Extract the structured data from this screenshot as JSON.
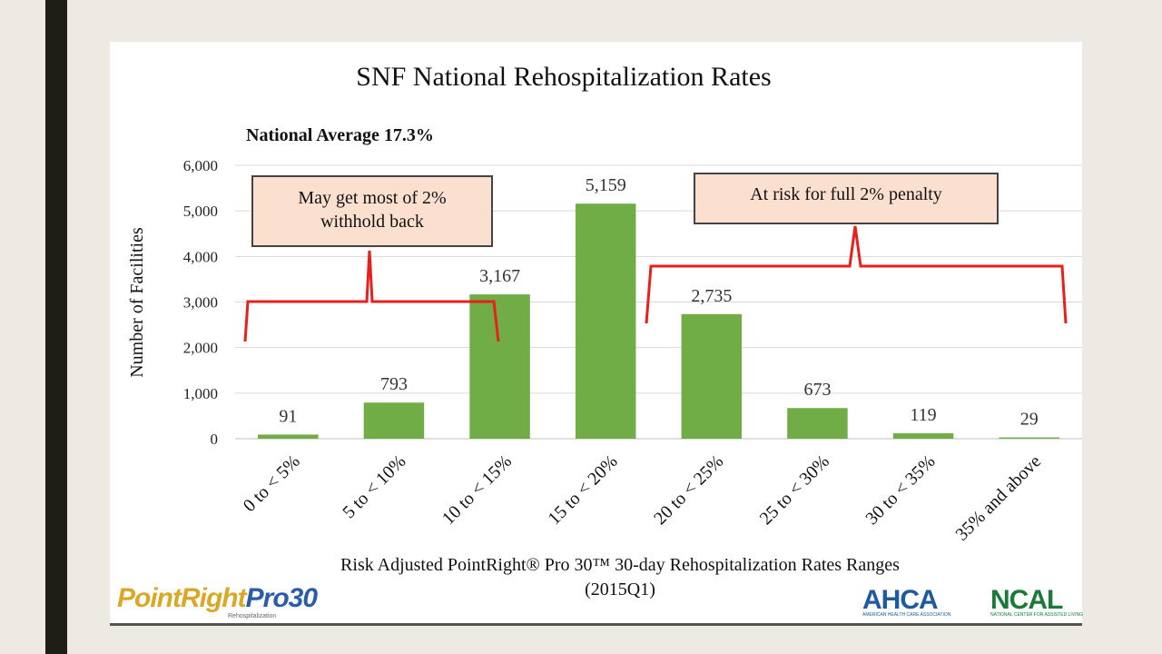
{
  "chart_data": {
    "type": "bar",
    "title": "SNF National Rehospitalization Rates",
    "subtitle": "National Average 17.3%",
    "ylabel": "Number of Facilities",
    "xlabel_line1": "Risk Adjusted PointRight® Pro 30™ 30-day Rehospitalization Rates Ranges",
    "xlabel_line2": "(2015Q1)",
    "ylim": [
      0,
      6000
    ],
    "yticks": [
      0,
      1000,
      2000,
      3000,
      4000,
      5000,
      6000
    ],
    "ytick_labels": [
      "0",
      "1,000",
      "2,000",
      "3,000",
      "4,000",
      "5,000",
      "6,000"
    ],
    "grid": true,
    "bar_color": "#70ad47",
    "categories": [
      "0 to < 5%",
      "5 to < 10%",
      "10 to < 15%",
      "15 to < 20%",
      "20 to < 25%",
      "25 to < 30%",
      "30 to < 35%",
      "35% and above"
    ],
    "values": [
      91,
      793,
      3167,
      5159,
      2735,
      673,
      119,
      29
    ],
    "value_labels": [
      "91",
      "793",
      "3,167",
      "5,159",
      "2,735",
      "673",
      "119",
      "29"
    ],
    "annotations": [
      {
        "text_lines": [
          "May get most of 2%",
          "withhold back"
        ],
        "covers_categories": [
          "0 to < 5%",
          "5 to < 10%",
          "10 to < 15%"
        ]
      },
      {
        "text_lines": [
          "At risk for full 2% penalty"
        ],
        "covers_categories": [
          "20 to < 25%",
          "25 to < 30%",
          "30 to < 35%",
          "35% and above"
        ]
      }
    ],
    "annotation_box_color": "#fbe0d0",
    "bracket_color": "#e8201c"
  },
  "logos": {
    "pointright": {
      "part1": "PointRight",
      "part2": "Pro30",
      "sub": "Rehospitalization"
    },
    "ahca": {
      "text": "AHCA",
      "sub": "AMERICAN HEALTH CARE ASSOCIATION"
    },
    "ncal": {
      "text": "NCAL",
      "sub": "NATIONAL CENTER FOR ASSISTED LIVING"
    }
  }
}
